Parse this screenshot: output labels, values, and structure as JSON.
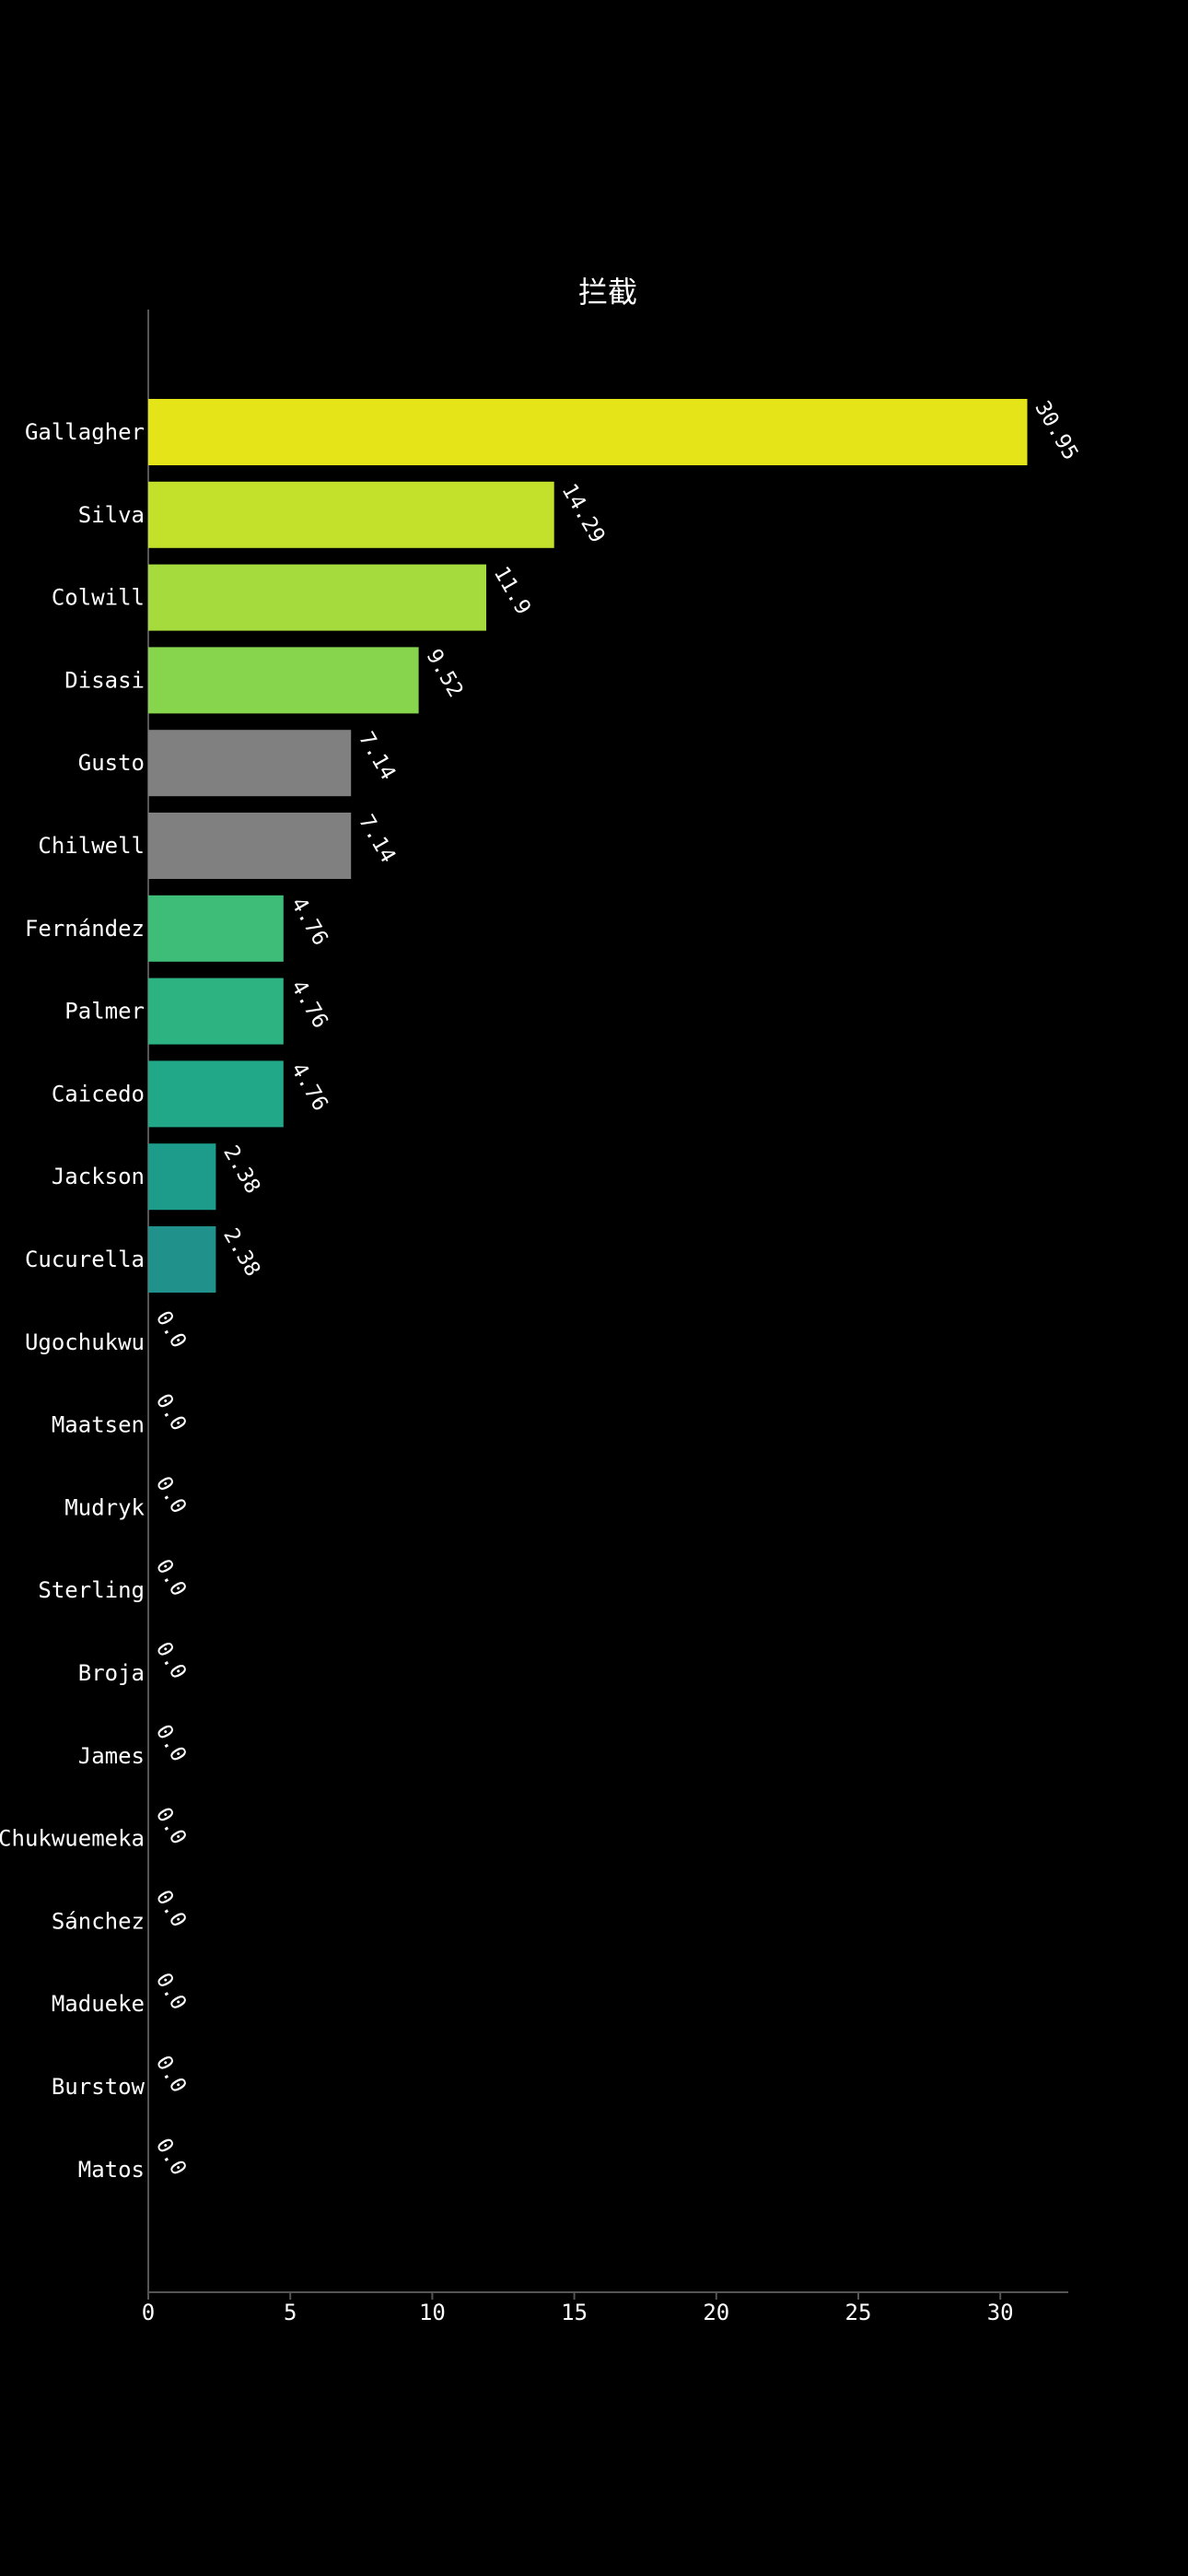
{
  "chart_data": {
    "type": "bar",
    "orientation": "horizontal",
    "title": "拦截",
    "xlabel": "",
    "ylabel": "",
    "xlim": [
      0,
      32.5
    ],
    "x_ticks": [
      0,
      5,
      10,
      15,
      20,
      25,
      30
    ],
    "grid": false,
    "legend": "none",
    "categories": [
      "Gallagher",
      "Silva",
      "Colwill",
      "Disasi",
      "Gusto",
      "Chilwell",
      "Fernández",
      "Palmer",
      "Caicedo",
      "Jackson",
      "Cucurella",
      "Ugochukwu",
      "Maatsen",
      "Mudryk",
      "Sterling",
      "Broja",
      "James",
      "Chukwuemeka",
      "Sánchez",
      "Madueke",
      "Burstow",
      "Matos"
    ],
    "values": [
      30.95,
      14.29,
      11.9,
      9.52,
      7.14,
      7.14,
      4.76,
      4.76,
      4.76,
      2.38,
      2.38,
      0.0,
      0.0,
      0.0,
      0.0,
      0.0,
      0.0,
      0.0,
      0.0,
      0.0,
      0.0,
      0.0
    ],
    "value_labels": [
      "30.95",
      "14.29",
      "11.9",
      "9.52",
      "7.14",
      "7.14",
      "4.76",
      "4.76",
      "4.76",
      "2.38",
      "2.38",
      "0.0",
      "0.0",
      "0.0",
      "0.0",
      "0.0",
      "0.0",
      "0.0",
      "0.0",
      "0.0",
      "0.0",
      "0.0"
    ],
    "colors": [
      "#e4e419",
      "#c3e12a",
      "#a6db3d",
      "#87d54d",
      "#808080",
      "#808080",
      "#3ebd78",
      "#2db282",
      "#21a888",
      "#1e9c8b",
      "#21918c",
      "#1f858d",
      "#23798e",
      "#276e8e",
      "#2d638d",
      "#31578c",
      "#364c8a",
      "#3b4087",
      "#413481",
      "#45267a",
      "#471a6f",
      "#460b5e"
    ],
    "background": "#000000",
    "text_color": "#ffffff"
  }
}
